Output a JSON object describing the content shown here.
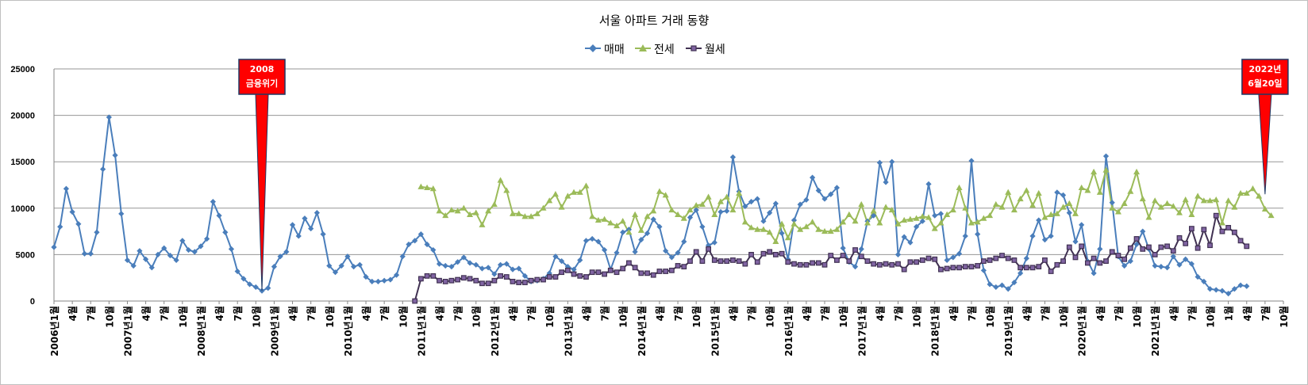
{
  "chart_data": {
    "type": "line",
    "title": "서울 아파트 거래 동향",
    "xlabel": "",
    "ylabel": "",
    "ylim": [
      0,
      25000
    ],
    "yticks": [
      0,
      5000,
      10000,
      15000,
      20000,
      25000
    ],
    "ytick_labels": [
      "0",
      "5000",
      "10000",
      "15000",
      "20000",
      "25000"
    ],
    "x_range_months": [
      0,
      201
    ],
    "x_ticks": [
      {
        "m": 0,
        "label": "2006년1월"
      },
      {
        "m": 3,
        "label": "4월"
      },
      {
        "m": 6,
        "label": "7월"
      },
      {
        "m": 9,
        "label": "10월"
      },
      {
        "m": 12,
        "label": "2007년1월"
      },
      {
        "m": 15,
        "label": "4월"
      },
      {
        "m": 18,
        "label": "7월"
      },
      {
        "m": 21,
        "label": "10월"
      },
      {
        "m": 24,
        "label": "2008년1월"
      },
      {
        "m": 27,
        "label": "4월"
      },
      {
        "m": 30,
        "label": "7월"
      },
      {
        "m": 33,
        "label": "10월"
      },
      {
        "m": 36,
        "label": "2009년1월"
      },
      {
        "m": 39,
        "label": "4월"
      },
      {
        "m": 42,
        "label": "7월"
      },
      {
        "m": 45,
        "label": "10월"
      },
      {
        "m": 48,
        "label": "2010년1월"
      },
      {
        "m": 51,
        "label": "4월"
      },
      {
        "m": 54,
        "label": "7월"
      },
      {
        "m": 57,
        "label": "10월"
      },
      {
        "m": 60,
        "label": "2011년1월"
      },
      {
        "m": 63,
        "label": "4월"
      },
      {
        "m": 66,
        "label": "7월"
      },
      {
        "m": 69,
        "label": "10월"
      },
      {
        "m": 72,
        "label": "2012년1월"
      },
      {
        "m": 75,
        "label": "4월"
      },
      {
        "m": 78,
        "label": "7월"
      },
      {
        "m": 81,
        "label": "10월"
      },
      {
        "m": 84,
        "label": "2013년1월"
      },
      {
        "m": 87,
        "label": "4월"
      },
      {
        "m": 90,
        "label": "7월"
      },
      {
        "m": 93,
        "label": "10월"
      },
      {
        "m": 96,
        "label": "2014년1월"
      },
      {
        "m": 99,
        "label": "4월"
      },
      {
        "m": 102,
        "label": "7월"
      },
      {
        "m": 105,
        "label": "10월"
      },
      {
        "m": 108,
        "label": "2015년1월"
      },
      {
        "m": 111,
        "label": "4월"
      },
      {
        "m": 114,
        "label": "7월"
      },
      {
        "m": 117,
        "label": "10월"
      },
      {
        "m": 120,
        "label": "2016년1월"
      },
      {
        "m": 123,
        "label": "4월"
      },
      {
        "m": 126,
        "label": "7월"
      },
      {
        "m": 129,
        "label": "10월"
      },
      {
        "m": 132,
        "label": "2017년1월"
      },
      {
        "m": 135,
        "label": "4월"
      },
      {
        "m": 138,
        "label": "7월"
      },
      {
        "m": 141,
        "label": "10월"
      },
      {
        "m": 144,
        "label": "2018년1월"
      },
      {
        "m": 147,
        "label": "4월"
      },
      {
        "m": 150,
        "label": "7월"
      },
      {
        "m": 153,
        "label": "10월"
      },
      {
        "m": 156,
        "label": "2019년1월"
      },
      {
        "m": 159,
        "label": "4월"
      },
      {
        "m": 162,
        "label": "7월"
      },
      {
        "m": 165,
        "label": "10월"
      },
      {
        "m": 168,
        "label": "2020년1월"
      },
      {
        "m": 171,
        "label": "4월"
      },
      {
        "m": 174,
        "label": "7월"
      },
      {
        "m": 177,
        "label": "10월"
      },
      {
        "m": 180,
        "label": "2021년1월"
      },
      {
        "m": 183,
        "label": "4월"
      },
      {
        "m": 186,
        "label": "7월"
      },
      {
        "m": 189,
        "label": "10월"
      },
      {
        "m": 192,
        "label": "1월"
      },
      {
        "m": 195,
        "label": "4월"
      },
      {
        "m": 198,
        "label": "7월"
      },
      {
        "m": 201,
        "label": "10월"
      }
    ],
    "series": [
      {
        "name": "매매",
        "color": "#4a7ebb",
        "marker": "diamond",
        "start_month": 0,
        "values": [
          5800,
          8000,
          12100,
          9600,
          8300,
          5100,
          5100,
          7400,
          14200,
          19800,
          15700,
          9400,
          4400,
          3800,
          5400,
          4500,
          3600,
          5000,
          5700,
          4900,
          4400,
          6500,
          5500,
          5300,
          5900,
          6700,
          10700,
          9200,
          7400,
          5600,
          3200,
          2400,
          1800,
          1500,
          1100,
          1400,
          3700,
          4800,
          5300,
          8200,
          7000,
          8900,
          7800,
          9500,
          7200,
          3800,
          3100,
          3800,
          4800,
          3700,
          3900,
          2600,
          2100,
          2100,
          2200,
          2300,
          2800,
          4800,
          6100,
          6500,
          7200,
          6100,
          5500,
          4000,
          3800,
          3700,
          4200,
          4700,
          4100,
          3900,
          3500,
          3600,
          2900,
          3900,
          4000,
          3400,
          3500,
          2700,
          2100,
          2200,
          2400,
          3000,
          4800,
          4300,
          3700,
          3400,
          4400,
          6500,
          6700,
          6400,
          5500,
          3400,
          5200,
          7400,
          7700,
          5300,
          6600,
          7300,
          8800,
          8000,
          5400,
          4700,
          5200,
          6400,
          9000,
          9800,
          8000,
          6000,
          6300,
          9600,
          9700,
          15500,
          11800,
          10200,
          10700,
          11000,
          8600,
          9500,
          10500,
          7300,
          4500,
          8700,
          10400,
          10900,
          13300,
          11900,
          11000,
          11500,
          12200,
          5700,
          4200,
          3700,
          5600,
          8600,
          9200,
          14900,
          12800,
          15000,
          5000,
          6900,
          6300,
          8000,
          8600,
          12600,
          9200,
          9400,
          4400,
          4700,
          5100,
          7000,
          15100,
          7200,
          3300,
          1800,
          1500,
          1700,
          1300,
          2000,
          3000,
          4600,
          7000,
          8700,
          6600,
          7000,
          11700,
          11400,
          9500,
          6400,
          8200,
          4300,
          3000,
          5600,
          15600,
          10600,
          4800,
          3800,
          4300,
          6100,
          7500,
          5600,
          3800,
          3700,
          3600,
          4800,
          3900,
          4500,
          4000,
          2600,
          2100,
          1300,
          1200,
          1100,
          800,
          1300,
          1700,
          1600
        ]
      },
      {
        "name": "전세",
        "color": "#9bbb59",
        "marker": "triangle",
        "start_month": 60,
        "values": [
          12300,
          12200,
          12100,
          9700,
          9200,
          9800,
          9700,
          10000,
          9300,
          9500,
          8200,
          9700,
          10400,
          13000,
          11900,
          9400,
          9400,
          9100,
          9100,
          9400,
          10000,
          10800,
          11500,
          10100,
          11300,
          11700,
          11700,
          12400,
          9100,
          8700,
          8800,
          8400,
          8100,
          8600,
          7400,
          9300,
          7600,
          9100,
          9700,
          11800,
          11400,
          9800,
          9300,
          8900,
          9800,
          10300,
          10400,
          11200,
          9300,
          10700,
          11200,
          9800,
          11600,
          8500,
          7900,
          7700,
          7700,
          7400,
          6400,
          8300,
          6800,
          8300,
          7700,
          8000,
          8500,
          7700,
          7500,
          7500,
          7700,
          8500,
          9300,
          8600,
          10400,
          8400,
          9700,
          8400,
          10100,
          9800,
          8300,
          8700,
          8800,
          8900,
          9100,
          9000,
          7800,
          8400,
          9300,
          9800,
          12200,
          10000,
          8400,
          8500,
          8900,
          9200,
          10400,
          10100,
          11700,
          9800,
          11000,
          11900,
          10300,
          11600,
          9000,
          9300,
          9400,
          10100,
          10500,
          9400,
          12200,
          11900,
          13900,
          11700,
          14100,
          10000,
          9600,
          10500,
          11800,
          13900,
          11000,
          9000,
          10800,
          10100,
          10500,
          10200,
          9500,
          10900,
          9300,
          11300,
          10800,
          10800,
          10900,
          8400,
          10800,
          10100,
          11600,
          11600,
          12100,
          11300,
          9900,
          9200
        ]
      },
      {
        "name": "월세",
        "color": "#403152",
        "marker": "square",
        "start_month": 59,
        "values": [
          0,
          2400,
          2700,
          2700,
          2200,
          2100,
          2200,
          2300,
          2500,
          2400,
          2200,
          1900,
          1900,
          2200,
          2700,
          2600,
          2100,
          2000,
          2000,
          2200,
          2300,
          2300,
          2600,
          2600,
          3100,
          3300,
          2900,
          2700,
          2600,
          3100,
          3100,
          2900,
          3300,
          3100,
          3500,
          4100,
          3600,
          3000,
          3000,
          2800,
          3200,
          3200,
          3300,
          3800,
          3700,
          4300,
          5300,
          4300,
          5600,
          4400,
          4300,
          4300,
          4400,
          4300,
          4000,
          5000,
          4200,
          5100,
          5300,
          5000,
          5100,
          4200,
          4000,
          3900,
          3900,
          4100,
          4100,
          3900,
          4900,
          4400,
          4900,
          4300,
          5500,
          4800,
          4300,
          4000,
          3900,
          4000,
          3900,
          4000,
          3400,
          4200,
          4200,
          4400,
          4600,
          4500,
          3400,
          3500,
          3600,
          3600,
          3700,
          3700,
          3800,
          4300,
          4400,
          4600,
          4900,
          4600,
          4400,
          3600,
          3600,
          3600,
          3700,
          4400,
          3200,
          3900,
          4300,
          5800,
          4700,
          5900,
          4100,
          4600,
          4100,
          4300,
          5300,
          4900,
          4500,
          5700,
          6700,
          5600,
          5800,
          5000,
          5800,
          5900,
          5400,
          6800,
          6200,
          7800,
          5700,
          7700,
          6000,
          9200,
          7500,
          7900,
          7400,
          6500,
          5900
        ]
      }
    ],
    "legend": {
      "position": "top-center",
      "entries": [
        "매매",
        "전세",
        "월세"
      ]
    },
    "annotations": [
      {
        "month": 34,
        "lines": [
          "2008",
          "금융위기"
        ],
        "value": 1100
      },
      {
        "month": 198,
        "lines": [
          "2022년",
          "6월20일"
        ],
        "value": 11500
      }
    ],
    "grid": {
      "horizontal": true,
      "vertical": false
    }
  }
}
